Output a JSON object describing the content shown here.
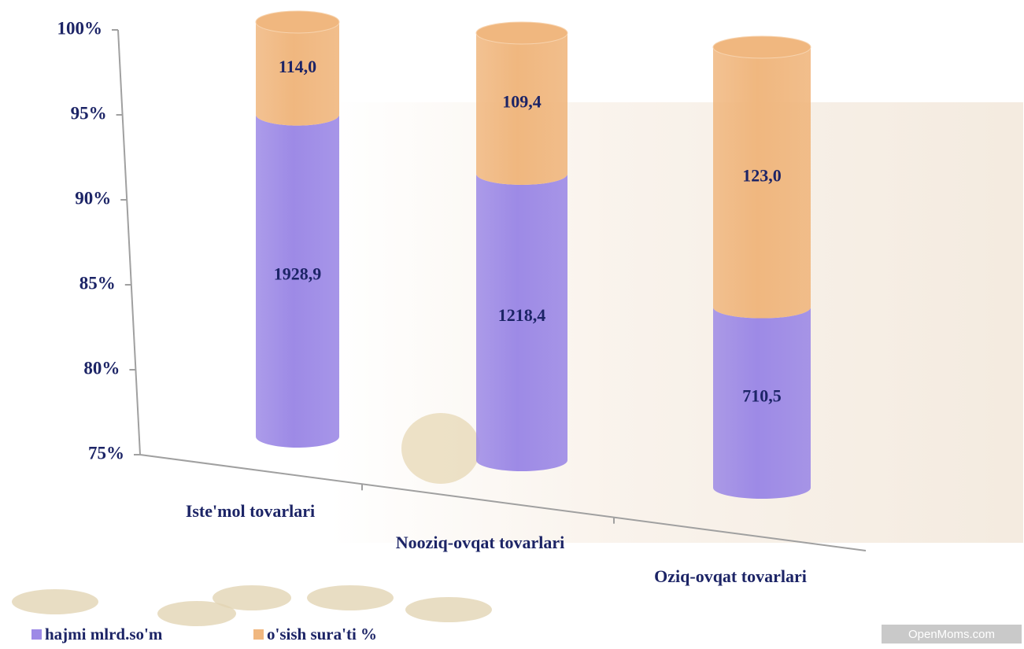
{
  "chart_data": {
    "type": "bar",
    "stacked": "percent",
    "categories": [
      "Iste'mol tovarlari",
      "Nooziq-ovqat tovarlari",
      "Oziq-ovqat tovarlari"
    ],
    "series": [
      {
        "name": "hajmi mlrd.so'm",
        "color": "#9d8ae6",
        "values": [
          1928.9,
          1218.4,
          710.5
        ],
        "value_labels": [
          "1928,9",
          "1218,4",
          "710,5"
        ]
      },
      {
        "name": "o'sish sura'ti %",
        "color": "#f0b77f",
        "values": [
          114.0,
          109.4,
          123.0
        ],
        "value_labels": [
          "114,0",
          "109,4",
          "123,0"
        ]
      }
    ],
    "ylim": [
      75,
      100
    ],
    "yticks": [
      {
        "value": 75,
        "label": "75%"
      },
      {
        "value": 80,
        "label": "80%"
      },
      {
        "value": 85,
        "label": "85%"
      },
      {
        "value": 90,
        "label": "90%"
      },
      {
        "value": 95,
        "label": "95%"
      },
      {
        "value": 100,
        "label": "100%"
      }
    ],
    "legend": "bottom-left",
    "watermark": "OpenMoms.com"
  }
}
